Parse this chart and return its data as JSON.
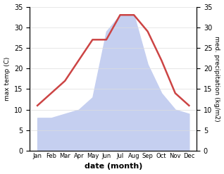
{
  "months": [
    "Jan",
    "Feb",
    "Mar",
    "Apr",
    "May",
    "Jun",
    "Jul",
    "Aug",
    "Sep",
    "Oct",
    "Nov",
    "Dec"
  ],
  "temp": [
    11,
    14,
    17,
    22,
    27,
    27,
    33,
    33,
    29,
    22,
    14,
    11
  ],
  "precip": [
    8,
    8,
    9,
    10,
    13,
    29,
    33,
    33,
    21,
    14,
    10,
    9
  ],
  "temp_color": "#cc4444",
  "precip_fill_color": "#c5cff0",
  "temp_ylim": [
    0,
    35
  ],
  "precip_ylim": [
    0,
    35
  ],
  "xlabel": "date (month)",
  "ylabel_left": "max temp (C)",
  "ylabel_right": "med. precipitation (kg/m2)",
  "yticks": [
    0,
    5,
    10,
    15,
    20,
    25,
    30,
    35
  ],
  "background_color": "#ffffff"
}
